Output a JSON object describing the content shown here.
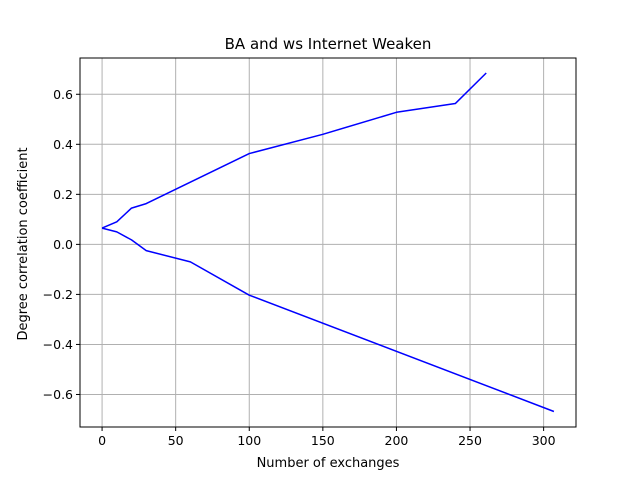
{
  "chart_data": {
    "type": "line",
    "title": "BA and ws Internet Weaken",
    "xlabel": "Number of exchanges",
    "ylabel": "Degree correlation coefficient",
    "xlim": [
      -15,
      322
    ],
    "ylim": [
      -0.73,
      0.745
    ],
    "xticks": [
      0,
      50,
      100,
      150,
      200,
      250,
      300
    ],
    "xtick_labels": [
      "0",
      "50",
      "100",
      "150",
      "200",
      "250",
      "300"
    ],
    "yticks": [
      -0.6,
      -0.4,
      -0.2,
      0.0,
      0.2,
      0.4,
      0.6
    ],
    "ytick_labels": [
      "−0.6",
      "−0.4",
      "−0.2",
      "0.0",
      "0.2",
      "0.4",
      "0.6"
    ],
    "grid": true,
    "line_color": "#0000ff",
    "series": [
      {
        "x": [
          0,
          10,
          20,
          30,
          100,
          150,
          200,
          240,
          261
        ],
        "y": [
          0.065,
          0.09,
          0.145,
          0.163,
          0.363,
          0.44,
          0.528,
          0.563,
          0.685
        ]
      },
      {
        "x": [
          0,
          10,
          20,
          30,
          60,
          100,
          307
        ],
        "y": [
          0.065,
          0.05,
          0.018,
          -0.025,
          -0.07,
          -0.203,
          -0.668
        ]
      }
    ]
  }
}
